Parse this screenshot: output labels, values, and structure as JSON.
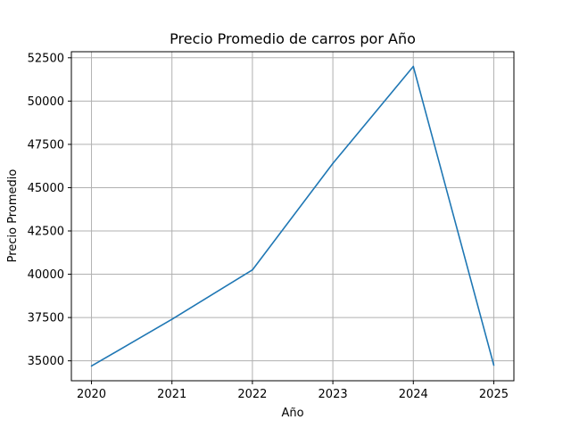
{
  "chart_data": {
    "type": "line",
    "title": "Precio Promedio de carros por Año",
    "xlabel": "Año",
    "ylabel": "Precio Promedio",
    "x": [
      2020,
      2021,
      2022,
      2023,
      2024,
      2025
    ],
    "xticks": [
      "2020",
      "2021",
      "2022",
      "2023",
      "2024",
      "2025"
    ],
    "yticks": [
      "35000",
      "37500",
      "40000",
      "42500",
      "45000",
      "47500",
      "50000",
      "52500"
    ],
    "ytick_values": [
      35000,
      37500,
      40000,
      42500,
      45000,
      47500,
      50000,
      52500
    ],
    "xlim": [
      2019.75,
      2025.25
    ],
    "ylim": [
      33850,
      52850
    ],
    "grid": true,
    "series": [
      {
        "values": [
          34700,
          37400,
          40250,
          46400,
          52000,
          34750
        ],
        "color": "#1f77b4"
      }
    ]
  }
}
